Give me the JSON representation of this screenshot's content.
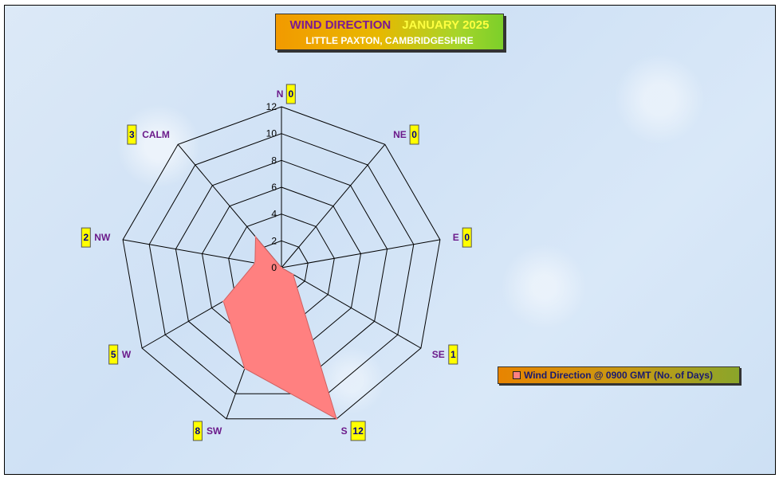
{
  "title": {
    "main": "WIND DIRECTION",
    "month": "JANUARY 2025",
    "location": "LITTLE PAXTON, CAMBRIDGESHIRE"
  },
  "legend": {
    "label": "Wind Direction @ 0900 GMT (No. of Days)"
  },
  "colors": {
    "fill": "#ff8080",
    "label": "#6b1a8a",
    "count_box": "#ffff00",
    "count_text": "#000080"
  },
  "chart_data": {
    "type": "radar",
    "categories": [
      "N",
      "NE",
      "E",
      "SE",
      "S",
      "SW",
      "W",
      "NW",
      "CALM"
    ],
    "series": [
      {
        "name": "Wind Direction @ 0900 GMT (No. of Days)",
        "values": [
          0,
          0,
          0,
          1,
          12,
          8,
          5,
          2,
          3
        ]
      }
    ],
    "rmin": 0,
    "rmax": 12,
    "ticks": [
      0,
      2,
      4,
      6,
      8,
      10,
      12
    ],
    "grid": true,
    "legend_position": "right"
  }
}
